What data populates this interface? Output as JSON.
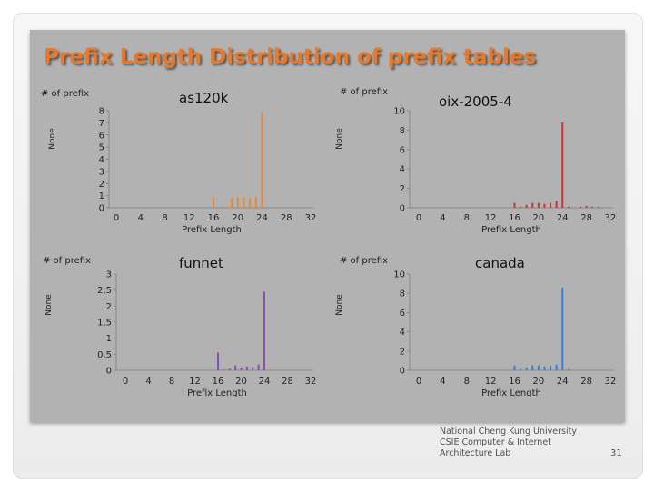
{
  "slide": {
    "title": "Prefix Length Distribution of prefix tables",
    "credits": [
      "National Cheng Kung University",
      "CSIE Computer & Internet",
      "Architecture Lab"
    ],
    "page_number": "31"
  },
  "chart_data": [
    {
      "type": "bar",
      "title": "as120k",
      "ylabel_left": "# of prefix",
      "ylabel_rotated": "None",
      "xlabel": "Prefix Length",
      "color": "#e8883a",
      "xticks": [
        0,
        4,
        8,
        12,
        16,
        20,
        24,
        28,
        32
      ],
      "yticks": [
        "0",
        "1",
        "2",
        "3",
        "4",
        "5",
        "6",
        "7",
        "8"
      ],
      "ylim": [
        0,
        8
      ],
      "x": [
        16,
        18,
        19,
        20,
        21,
        22,
        23,
        24
      ],
      "values": [
        0.9,
        0.1,
        0.8,
        0.9,
        0.9,
        0.8,
        0.9,
        7.9
      ]
    },
    {
      "type": "bar",
      "title": "oix-2005-4",
      "ylabel_left": "# of prefix",
      "ylabel_rotated": "None",
      "xlabel": "Prefix Length",
      "color": "#cc3333",
      "xticks": [
        0,
        4,
        8,
        12,
        16,
        20,
        24,
        28,
        32
      ],
      "yticks": [
        "0",
        "2",
        "4",
        "6",
        "8",
        "10"
      ],
      "ylim": [
        0,
        10
      ],
      "x": [
        16,
        17,
        18,
        19,
        20,
        21,
        22,
        23,
        24,
        25,
        27,
        28,
        29,
        30
      ],
      "values": [
        0.5,
        0.1,
        0.3,
        0.5,
        0.5,
        0.4,
        0.5,
        0.7,
        8.8,
        0.1,
        0.1,
        0.2,
        0.1,
        0.1
      ]
    },
    {
      "type": "bar",
      "title": "funnet",
      "ylabel_left": "# of prefix",
      "ylabel_rotated": "None",
      "xlabel": "Prefix Length",
      "color": "#8a4fb5",
      "xticks": [
        0,
        4,
        8,
        12,
        16,
        20,
        24,
        28,
        32
      ],
      "yticks": [
        "0",
        "0,5",
        "1",
        "1,5",
        "2",
        "2,5",
        "3"
      ],
      "ylim": [
        0,
        3
      ],
      "x": [
        16,
        17,
        18,
        19,
        20,
        21,
        22,
        23,
        24
      ],
      "values": [
        0.55,
        0.02,
        0.05,
        0.15,
        0.08,
        0.12,
        0.1,
        0.18,
        2.45
      ]
    },
    {
      "type": "bar",
      "title": "canada",
      "ylabel_left": "# of prefix",
      "ylabel_rotated": "None",
      "xlabel": "Prefix Length",
      "color": "#3b7fd4",
      "xticks": [
        0,
        4,
        8,
        12,
        16,
        20,
        24,
        28,
        32
      ],
      "yticks": [
        "0",
        "2",
        "4",
        "6",
        "8",
        "10"
      ],
      "ylim": [
        0,
        10
      ],
      "x": [
        16,
        17,
        18,
        19,
        20,
        21,
        22,
        23,
        24,
        25
      ],
      "values": [
        0.5,
        0.1,
        0.3,
        0.5,
        0.5,
        0.4,
        0.5,
        0.6,
        8.6,
        0.1
      ]
    }
  ]
}
